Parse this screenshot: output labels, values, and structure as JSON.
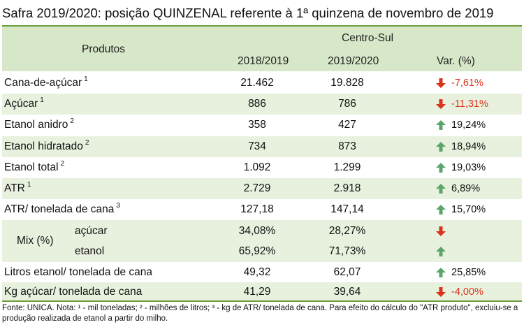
{
  "title": "Safra 2019/2020: posição QUINZENAL referente à 1ª quinzena de novembro de 2019",
  "header": {
    "produtos": "Produtos",
    "region": "Centro-Sul",
    "col1": "2018/2019",
    "col2": "2019/2020",
    "var": "Var. (%)"
  },
  "rows": [
    {
      "label": "Cana-de-açúcar",
      "sup": "1",
      "v1": "21.462",
      "v2": "19.828",
      "var": "-7,61%",
      "dir": "down"
    },
    {
      "label": "Açúcar",
      "sup": "1",
      "v1": "886",
      "v2": "786",
      "var": "-11,31%",
      "dir": "down"
    },
    {
      "label": "Etanol anidro",
      "sup": "2",
      "v1": "358",
      "v2": "427",
      "var": "19,24%",
      "dir": "up"
    },
    {
      "label": "Etanol hidratado",
      "sup": "2",
      "v1": "734",
      "v2": "873",
      "var": "18,94%",
      "dir": "up"
    },
    {
      "label": "Etanol total",
      "sup": "2",
      "v1": "1.092",
      "v2": "1.299",
      "var": "19,03%",
      "dir": "up"
    },
    {
      "label": "ATR",
      "sup": "1",
      "v1": "2.729",
      "v2": "2.918",
      "var": "6,89%",
      "dir": "up"
    },
    {
      "label": "ATR/ tonelada de cana",
      "sup": "3",
      "v1": "127,18",
      "v2": "147,14",
      "var": "15,70%",
      "dir": "up"
    }
  ],
  "mix": {
    "label": "Mix (%)",
    "acucar": {
      "label": "açúcar",
      "v1": "34,08%",
      "v2": "28,27%",
      "dir": "down"
    },
    "etanol": {
      "label": "etanol",
      "v1": "65,92%",
      "v2": "71,73%",
      "dir": "up"
    }
  },
  "rows_tail": [
    {
      "label": "Litros etanol/ tonelada de cana",
      "v1": "49,32",
      "v2": "62,07",
      "var": "25,85%",
      "dir": "up"
    },
    {
      "label": "Kg açúcar/ tonelada de cana",
      "v1": "41,29",
      "v2": "39,64",
      "var": "-4,00%",
      "dir": "down"
    }
  ],
  "footnote": "Fonte: UNICA. Nota: ¹ - mil toneladas; ² - milhões de litros; ³ - kg de ATR/ tonelada de cana. Para efeito do cálculo do \"ATR produto\", excluiu-se a produção realizada de etanol a partir do milho.",
  "colors": {
    "up": "#5aa56a",
    "down": "#d9341c",
    "header": "#d7e8c8",
    "shade": "#e8f1de",
    "rule": "#6e9e3f"
  },
  "icons": {
    "up": "arrow-up-icon",
    "down": "arrow-down-icon"
  }
}
